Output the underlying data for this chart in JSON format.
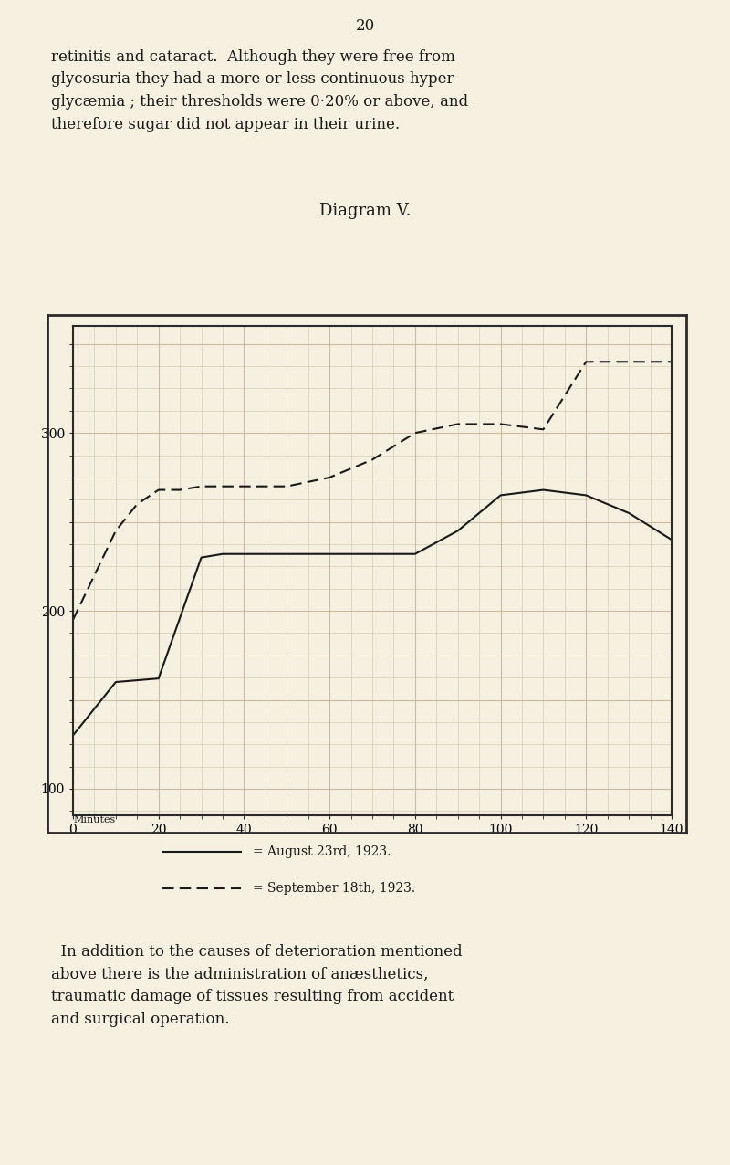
{
  "title": "Diagram V.",
  "xlabel_0": "0",
  "xlabel_label": "Minutes",
  "x_ticks": [
    0,
    20,
    40,
    60,
    80,
    100,
    120,
    140
  ],
  "y_ticks": [
    100,
    200,
    300
  ],
  "xlim": [
    0,
    140
  ],
  "ylim": [
    85,
    360
  ],
  "solid_x": [
    0,
    10,
    20,
    30,
    35,
    45,
    55,
    65,
    75,
    80,
    90,
    100,
    110,
    120,
    130,
    140
  ],
  "solid_y": [
    130,
    160,
    162,
    230,
    232,
    232,
    232,
    232,
    232,
    232,
    245,
    265,
    268,
    265,
    255,
    240
  ],
  "dashed_x": [
    0,
    5,
    10,
    15,
    20,
    25,
    30,
    40,
    50,
    60,
    70,
    80,
    90,
    100,
    110,
    120,
    130,
    140
  ],
  "dashed_y": [
    195,
    220,
    245,
    260,
    268,
    268,
    270,
    270,
    270,
    275,
    285,
    300,
    305,
    305,
    302,
    340,
    340,
    340
  ],
  "bg_color": "#f5f0e0",
  "grid_color": "#c8b89a",
  "line_color": "#1a1a1a",
  "legend_solid": "= August 23rd, 1923.",
  "legend_dashed": "= September 18th, 1923.",
  "outer_box_color": "#2a2a2a",
  "title_fontsize": 13,
  "tick_fontsize": 10,
  "legend_fontsize": 10
}
